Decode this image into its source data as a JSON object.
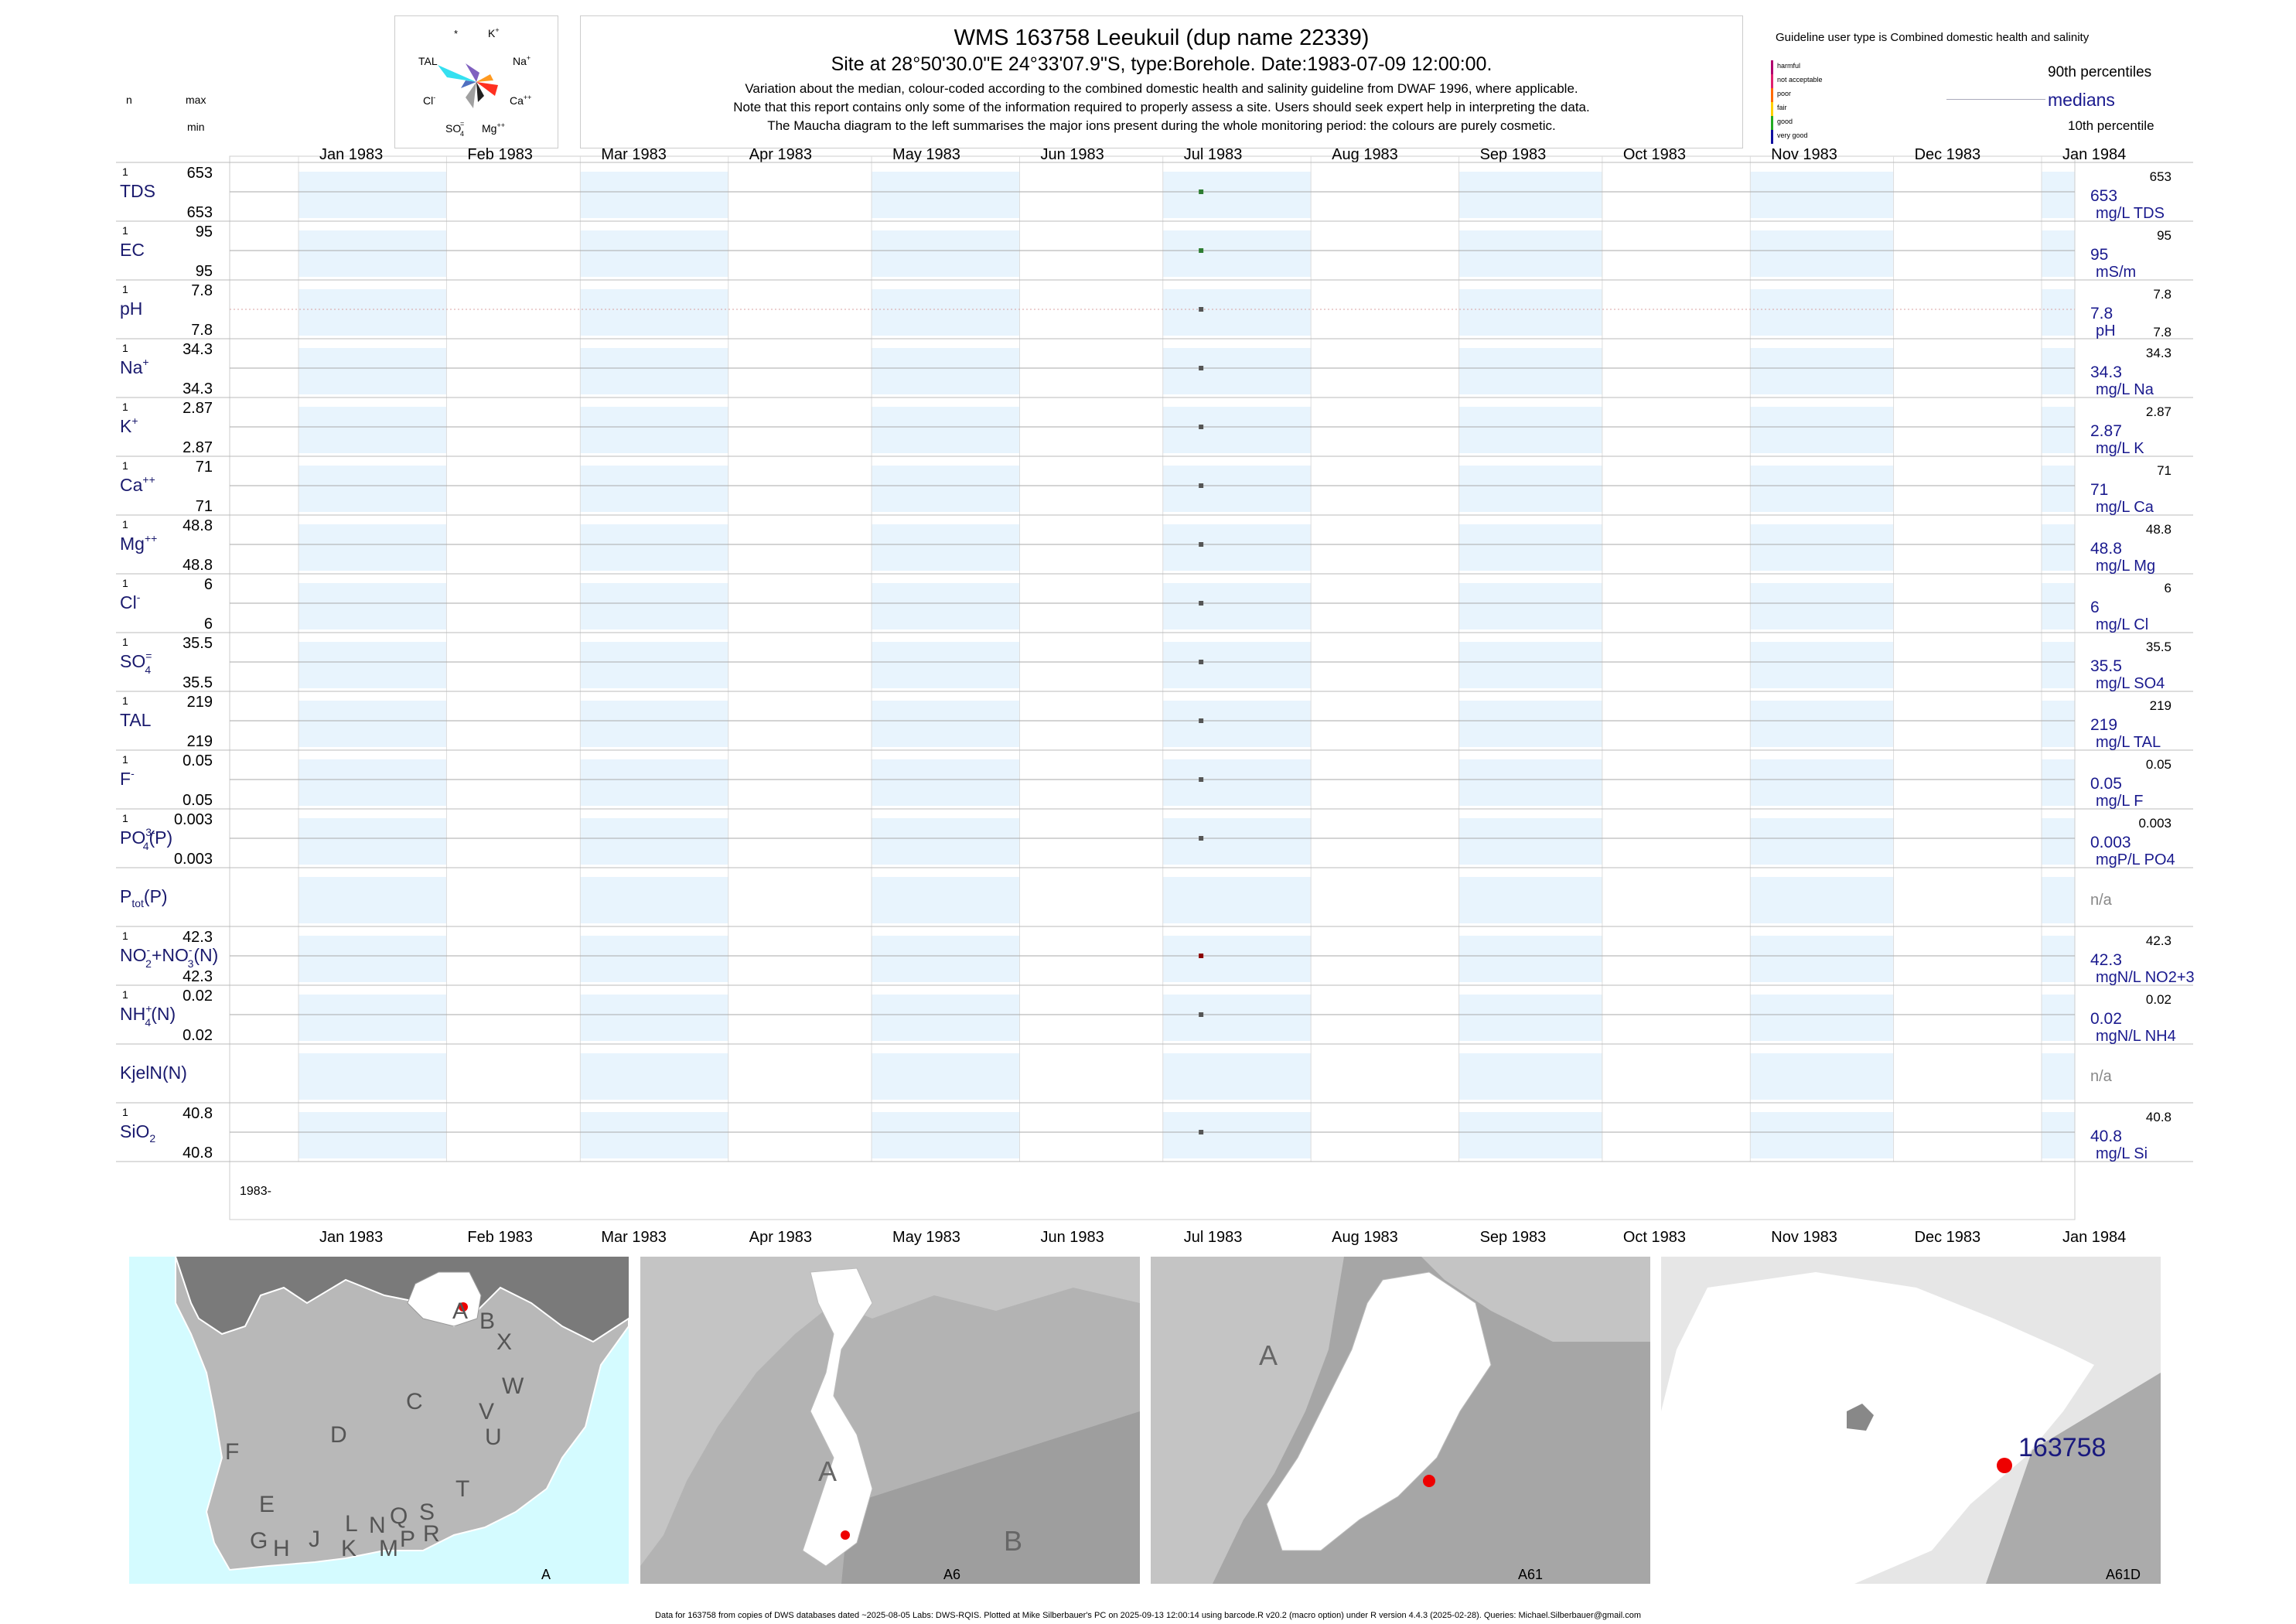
{
  "header": {
    "title": "WMS 163758  Leeukuil (dup name 22339)",
    "subtitle": "Site at 28°50'30.0\"E 24°33'07.9\"S, type:Borehole. Date:1983-07-09 12:00:00.",
    "note1": "Variation about the median,  colour-coded according to the combined domestic health and salinity guideline from DWAF 1996, where applicable.",
    "note2": "Note that this report contains only some of the information required to properly assess a site. Users should seek expert help in interpreting the data.",
    "note3": "The Maucha diagram to the left summarises the major ions present during the whole monitoring period: the colours are purely cosmetic."
  },
  "maucha": {
    "top": "*",
    "k": "K",
    "k_sup": "+",
    "tal": "TAL",
    "na": "Na",
    "na_sup": "+",
    "cl": "Cl",
    "cl_sup": "-",
    "ca": "Ca",
    "ca_sup": "++",
    "so4": "SO",
    "so4_sub": "4",
    "so4_sup": "=",
    "mg": "Mg",
    "mg_sup": "++"
  },
  "legend": {
    "guideline": "Guideline user type is Combined domestic health and salinity",
    "classes": [
      "harmful",
      "not acceptable",
      "poor",
      "fair",
      "good",
      "very good"
    ],
    "class_colors": [
      "#b0006e",
      "#e0206e",
      "#ff6a00",
      "#ffd000",
      "#22aa22",
      "#1010a0"
    ],
    "p90": "90th percentiles",
    "medians": "medians",
    "p10": "10th percentile"
  },
  "col_heads": {
    "n": "n",
    "max": "max",
    "min": "min"
  },
  "months_top": [
    "Jan 1983",
    "Feb 1983",
    "Mar 1983",
    "Apr 1983",
    "May 1983",
    "Jun 1983",
    "Jul 1983",
    "Aug 1983",
    "Sep 1983",
    "Oct 1983",
    "Nov 1983",
    "Dec 1983",
    "Jan 1984"
  ],
  "year_label": "1983-",
  "chart_data": {
    "type": "scatter",
    "x_range": [
      "1983-01-01",
      "1984-01-01"
    ],
    "sample_date": "1983-07-09",
    "series": [
      {
        "name": "TDS",
        "n": "1",
        "max": "653",
        "min": "653",
        "value": "653",
        "unit": "mg/L TDS",
        "p90": "653",
        "p10": "",
        "color": "#2e7d32"
      },
      {
        "name": "EC",
        "n": "1",
        "max": "95",
        "min": "95",
        "value": "95",
        "unit": "mS/m",
        "p90": "95",
        "p10": "",
        "color": "#2e7d32"
      },
      {
        "name": "pH",
        "n": "1",
        "max": "7.8",
        "min": "7.8",
        "value": "7.8",
        "unit": "pH",
        "p90": "7.8",
        "p10": "7.8",
        "color": "#555555"
      },
      {
        "name": "Na",
        "n": "1",
        "max": "34.3",
        "min": "34.3",
        "value": "34.3",
        "unit": "mg/L Na",
        "p90": "34.3",
        "p10": "",
        "color": "#555555"
      },
      {
        "name": "K",
        "n": "1",
        "max": "2.87",
        "min": "2.87",
        "value": "2.87",
        "unit": "mg/L K",
        "p90": "2.87",
        "p10": "",
        "color": "#555555"
      },
      {
        "name": "Ca",
        "n": "1",
        "max": "71",
        "min": "71",
        "value": "71",
        "unit": "mg/L Ca",
        "p90": "71",
        "p10": "",
        "color": "#555555"
      },
      {
        "name": "Mg",
        "n": "1",
        "max": "48.8",
        "min": "48.8",
        "value": "48.8",
        "unit": "mg/L Mg",
        "p90": "48.8",
        "p10": "",
        "color": "#555555"
      },
      {
        "name": "Cl",
        "n": "1",
        "max": "6",
        "min": "6",
        "value": "6",
        "unit": "mg/L Cl",
        "p90": "6",
        "p10": "",
        "color": "#555555"
      },
      {
        "name": "SO4",
        "n": "1",
        "max": "35.5",
        "min": "35.5",
        "value": "35.5",
        "unit": "mg/L SO4",
        "p90": "35.5",
        "p10": "",
        "color": "#555555"
      },
      {
        "name": "TAL",
        "n": "1",
        "max": "219",
        "min": "219",
        "value": "219",
        "unit": "mg/L TAL",
        "p90": "219",
        "p10": "",
        "color": "#555555"
      },
      {
        "name": "F",
        "n": "1",
        "max": "0.05",
        "min": "0.05",
        "value": "0.05",
        "unit": "mg/L F",
        "p90": "0.05",
        "p10": "",
        "color": "#555555"
      },
      {
        "name": "PO4(P)",
        "n": "1",
        "max": "0.003",
        "min": "0.003",
        "value": "0.003",
        "unit": "mgP/L PO4",
        "p90": "0.003",
        "p10": "",
        "color": "#555555"
      },
      {
        "name": "Ptot(P)",
        "n": "",
        "max": "",
        "min": "",
        "value": "n/a",
        "unit": "",
        "p90": "",
        "p10": "",
        "color": ""
      },
      {
        "name": "NO2+NO3(N)",
        "n": "1",
        "max": "42.3",
        "min": "42.3",
        "value": "42.3",
        "unit": "mgN/L NO2+3",
        "p90": "42.3",
        "p10": "",
        "color": "#8b0000"
      },
      {
        "name": "NH4(N)",
        "n": "1",
        "max": "0.02",
        "min": "0.02",
        "value": "0.02",
        "unit": "mgN/L NH4",
        "p90": "0.02",
        "p10": "",
        "color": "#555555"
      },
      {
        "name": "KjelN(N)",
        "n": "",
        "max": "",
        "min": "",
        "value": "n/a",
        "unit": "",
        "p90": "",
        "p10": "",
        "color": ""
      },
      {
        "name": "SiO2",
        "n": "1",
        "max": "40.8",
        "min": "40.8",
        "value": "40.8",
        "unit": "mg/L Si",
        "p90": "40.8",
        "p10": "",
        "color": "#555555"
      }
    ]
  },
  "maps": {
    "panel1": {
      "caption": "A",
      "letters": [
        "A",
        "B",
        "X",
        "W",
        "C",
        "V",
        "U",
        "D",
        "T",
        "F",
        "E",
        "S",
        "R",
        "G",
        "H",
        "J",
        "K",
        "L",
        "N",
        "M",
        "P",
        "Q"
      ]
    },
    "panel2": {
      "caption": "A6",
      "letters": [
        "A",
        "B"
      ]
    },
    "panel3": {
      "caption": "A61",
      "letters": [
        "A"
      ]
    },
    "panel4": {
      "caption": "A61D",
      "site": "163758"
    }
  },
  "footer": "Data for 163758 from copies of DWS databases dated ~2025-08-05 Labs: DWS-RQIS. Plotted at Mike Silberbauer's PC on 2025-09-13 12:00:14 using barcode.R v20.2 (macro option) under R version 4.4.3 (2025-02-28). Queries: Michael.Silberbauer@gmail.com"
}
